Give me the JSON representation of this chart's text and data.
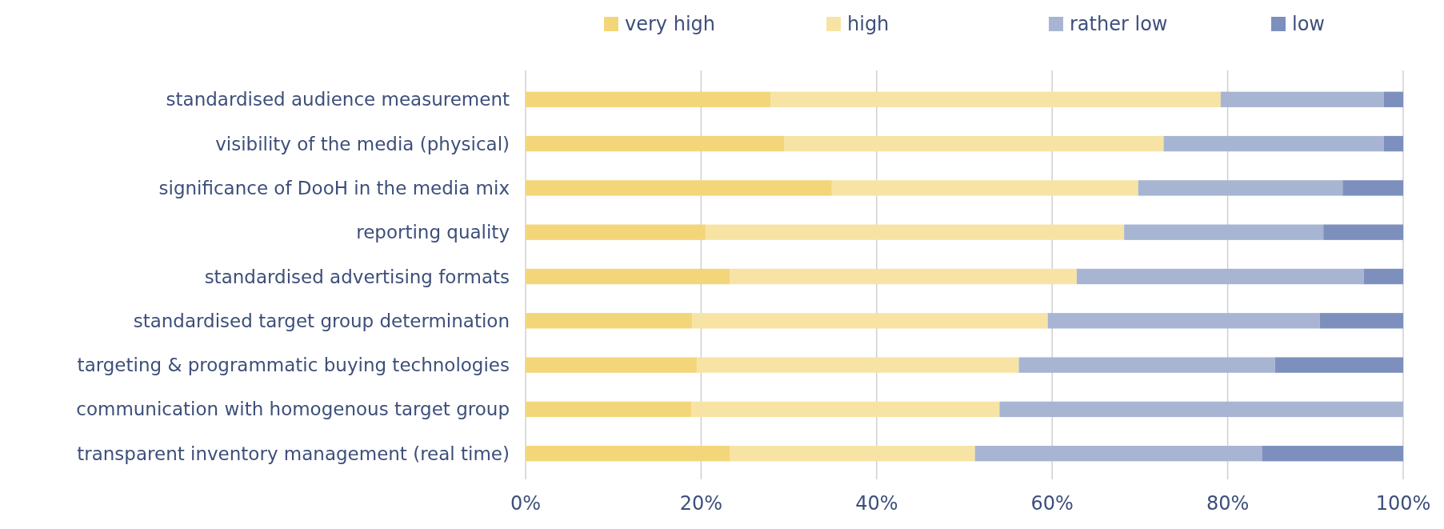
{
  "chart_data": {
    "type": "bar",
    "orientation": "horizontal",
    "stacked": true,
    "categories": [
      "standardised audience measurement",
      "visibility of the media (physical)",
      "significance of DooH in the media mix",
      "reporting quality",
      "standardised advertising formats",
      "standardised target group determination",
      "targeting & programmatic buying technologies",
      "communication with homogenous target group",
      "transparent inventory management (real time)"
    ],
    "series": [
      {
        "name": "very high",
        "color": "#f3d67a",
        "values": [
          27.9,
          29.5,
          34.9,
          20.5,
          23.3,
          19.0,
          19.5,
          18.9,
          23.3
        ]
      },
      {
        "name": "high",
        "color": "#f7e4a5",
        "values": [
          51.3,
          43.2,
          34.9,
          47.7,
          39.5,
          40.5,
          36.7,
          35.1,
          27.9
        ]
      },
      {
        "name": "rather low",
        "color": "#a7b5d3",
        "values": [
          18.6,
          25.1,
          23.3,
          22.7,
          32.7,
          31.0,
          29.2,
          46.0,
          32.7
        ]
      },
      {
        "name": "low",
        "color": "#7d90bd",
        "values": [
          2.2,
          2.2,
          6.9,
          9.1,
          4.5,
          9.5,
          14.6,
          0,
          16.1
        ]
      }
    ],
    "xlim": [
      0,
      100
    ],
    "xticks": [
      {
        "value": 0,
        "label": "0%"
      },
      {
        "value": 20,
        "label": "20%"
      },
      {
        "value": 40,
        "label": "40%"
      },
      {
        "value": 60,
        "label": "60%"
      },
      {
        "value": 80,
        "label": "80%"
      },
      {
        "value": 100,
        "label": "100%"
      }
    ],
    "grid": "x",
    "legend": "top"
  }
}
